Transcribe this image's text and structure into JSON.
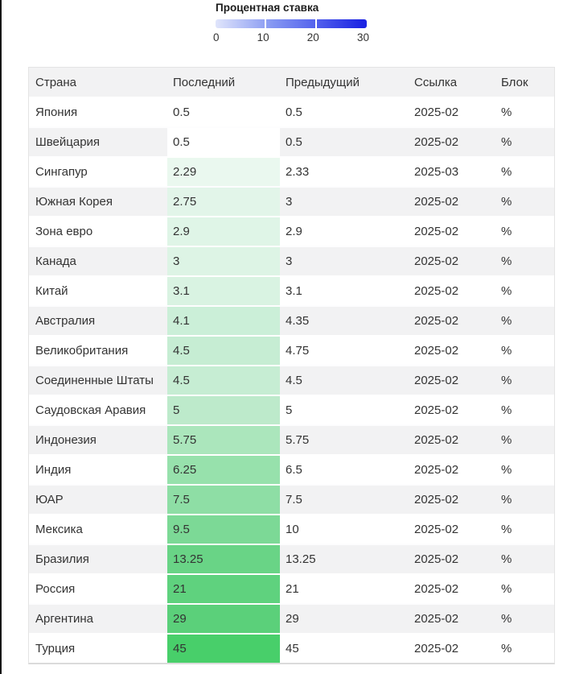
{
  "legend": {
    "title": "Процентная ставка",
    "ticks": [
      "0",
      "10",
      "20",
      "30"
    ],
    "gradient": {
      "start": "#e0e5fb",
      "mid": "#8496f2",
      "mid2": "#5b6aee",
      "end": "#1c24e3"
    }
  },
  "table": {
    "columns": [
      {
        "label": "Страна"
      },
      {
        "label": "Последний"
      },
      {
        "label": "Предыдущий"
      },
      {
        "label": "Ссылка"
      },
      {
        "label": "Блок"
      }
    ],
    "rows": [
      {
        "country": "Япония",
        "latest": "0.5",
        "previous": "0.5",
        "reference": "2025-02",
        "unit": "%",
        "latest_bg": "#ffffff"
      },
      {
        "country": "Швейцария",
        "latest": "0.5",
        "previous": "0.5",
        "reference": "2025-02",
        "unit": "%",
        "latest_bg": "#ffffff"
      },
      {
        "country": "Сингапур",
        "latest": "2.29",
        "previous": "2.33",
        "reference": "2025-03",
        "unit": "%",
        "latest_bg": "#eaf8ef"
      },
      {
        "country": "Южная Корея",
        "latest": "2.75",
        "previous": "3",
        "reference": "2025-02",
        "unit": "%",
        "latest_bg": "#e2f5e9"
      },
      {
        "country": "Зона евро",
        "latest": "2.9",
        "previous": "2.9",
        "reference": "2025-02",
        "unit": "%",
        "latest_bg": "#dff5e7"
      },
      {
        "country": "Канада",
        "latest": "3",
        "previous": "3",
        "reference": "2025-02",
        "unit": "%",
        "latest_bg": "#ddf4e5"
      },
      {
        "country": "Китай",
        "latest": "3.1",
        "previous": "3.1",
        "reference": "2025-02",
        "unit": "%",
        "latest_bg": "#d9f3e2"
      },
      {
        "country": "Австралия",
        "latest": "4.1",
        "previous": "4.35",
        "reference": "2025-02",
        "unit": "%",
        "latest_bg": "#cbefd8"
      },
      {
        "country": "Великобритания",
        "latest": "4.5",
        "previous": "4.75",
        "reference": "2025-02",
        "unit": "%",
        "latest_bg": "#c6edd3"
      },
      {
        "country": "Соединенные Штаты",
        "latest": "4.5",
        "previous": "4.5",
        "reference": "2025-02",
        "unit": "%",
        "latest_bg": "#c6edd3"
      },
      {
        "country": "Саудовская Аравия",
        "latest": "5",
        "previous": "5",
        "reference": "2025-02",
        "unit": "%",
        "latest_bg": "#bdeacb"
      },
      {
        "country": "Индонезия",
        "latest": "5.75",
        "previous": "5.75",
        "reference": "2025-02",
        "unit": "%",
        "latest_bg": "#abe6bc"
      },
      {
        "country": "Индия",
        "latest": "6.25",
        "previous": "6.5",
        "reference": "2025-02",
        "unit": "%",
        "latest_bg": "#97e1ac"
      },
      {
        "country": "ЮАР",
        "latest": "7.5",
        "previous": "7.5",
        "reference": "2025-02",
        "unit": "%",
        "latest_bg": "#8edea5"
      },
      {
        "country": "Мексика",
        "latest": "9.5",
        "previous": "10",
        "reference": "2025-02",
        "unit": "%",
        "latest_bg": "#7cd996"
      },
      {
        "country": "Бразилия",
        "latest": "13.25",
        "previous": "13.25",
        "reference": "2025-02",
        "unit": "%",
        "latest_bg": "#69d486"
      },
      {
        "country": "Россия",
        "latest": "21",
        "previous": "21",
        "reference": "2025-02",
        "unit": "%",
        "latest_bg": "#5fd27e"
      },
      {
        "country": "Аргентина",
        "latest": "29",
        "previous": "29",
        "reference": "2025-02",
        "unit": "%",
        "latest_bg": "#5bd07a"
      },
      {
        "country": "Турция",
        "latest": "45",
        "previous": "45",
        "reference": "2025-02",
        "unit": "%",
        "latest_bg": "#48cf6a"
      }
    ]
  },
  "chart_data": {
    "type": "table",
    "title": "Процентная ставка",
    "legend_scale": {
      "min": 0,
      "max": 30,
      "ticks": [
        0,
        10,
        20,
        30
      ],
      "colormap": "light-blue to blue; table cells shaded white to green by value"
    },
    "columns": [
      "Страна",
      "Последний",
      "Предыдущий",
      "Ссылка",
      "Блок"
    ],
    "rows": [
      [
        "Япония",
        0.5,
        0.5,
        "2025-02",
        "%"
      ],
      [
        "Швейцария",
        0.5,
        0.5,
        "2025-02",
        "%"
      ],
      [
        "Сингапур",
        2.29,
        2.33,
        "2025-03",
        "%"
      ],
      [
        "Южная Корея",
        2.75,
        3,
        "2025-02",
        "%"
      ],
      [
        "Зона евро",
        2.9,
        2.9,
        "2025-02",
        "%"
      ],
      [
        "Канада",
        3,
        3,
        "2025-02",
        "%"
      ],
      [
        "Китай",
        3.1,
        3.1,
        "2025-02",
        "%"
      ],
      [
        "Австралия",
        4.1,
        4.35,
        "2025-02",
        "%"
      ],
      [
        "Великобритания",
        4.5,
        4.75,
        "2025-02",
        "%"
      ],
      [
        "Соединенные Штаты",
        4.5,
        4.5,
        "2025-02",
        "%"
      ],
      [
        "Саудовская Аравия",
        5,
        5,
        "2025-02",
        "%"
      ],
      [
        "Индонезия",
        5.75,
        5.75,
        "2025-02",
        "%"
      ],
      [
        "Индия",
        6.25,
        6.5,
        "2025-02",
        "%"
      ],
      [
        "ЮАР",
        7.5,
        7.5,
        "2025-02",
        "%"
      ],
      [
        "Мексика",
        9.5,
        10,
        "2025-02",
        "%"
      ],
      [
        "Бразилия",
        13.25,
        13.25,
        "2025-02",
        "%"
      ],
      [
        "Россия",
        21,
        21,
        "2025-02",
        "%"
      ],
      [
        "Аргентина",
        29,
        29,
        "2025-02",
        "%"
      ],
      [
        "Турция",
        45,
        45,
        "2025-02",
        "%"
      ]
    ]
  }
}
